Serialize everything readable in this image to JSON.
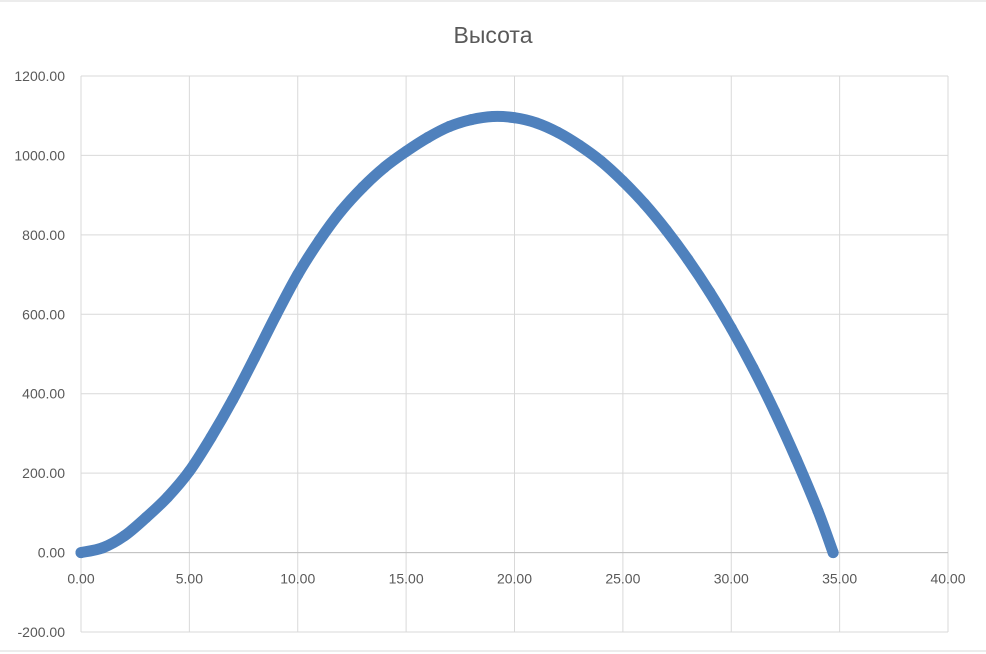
{
  "chart_data": {
    "type": "scatter",
    "title": "Высота",
    "xlim": [
      0,
      40
    ],
    "ylim": [
      -200,
      1200
    ],
    "x_ticks": [
      "0.00",
      "5.00",
      "10.00",
      "15.00",
      "20.00",
      "25.00",
      "30.00",
      "35.00",
      "40.00"
    ],
    "y_ticks": [
      "-200.00",
      "0.00",
      "200.00",
      "400.00",
      "600.00",
      "800.00",
      "1000.00",
      "1200.00"
    ],
    "x_tick_values": [
      0,
      5,
      10,
      15,
      20,
      25,
      30,
      35,
      40
    ],
    "y_tick_values": [
      -200,
      0,
      200,
      400,
      600,
      800,
      1000,
      1200
    ],
    "grid": true,
    "legend": "none",
    "series_color": "#4f81bd",
    "series": [
      {
        "x": [
          0,
          1,
          2,
          3,
          4,
          5,
          6,
          7,
          8,
          9,
          10,
          11,
          12,
          13,
          14,
          15,
          16,
          17,
          18,
          19,
          20,
          21,
          22,
          23,
          24,
          25,
          26,
          27,
          28,
          29,
          30,
          31,
          32,
          33,
          34,
          34.7
        ],
        "y": [
          0,
          12,
          42,
          88,
          140,
          205,
          290,
          385,
          490,
          598,
          700,
          786,
          860,
          920,
          970,
          1010,
          1045,
          1073,
          1090,
          1098,
          1095,
          1082,
          1058,
          1025,
          985,
          935,
          878,
          812,
          738,
          656,
          565,
          465,
          355,
          235,
          105,
          0
        ]
      }
    ]
  }
}
